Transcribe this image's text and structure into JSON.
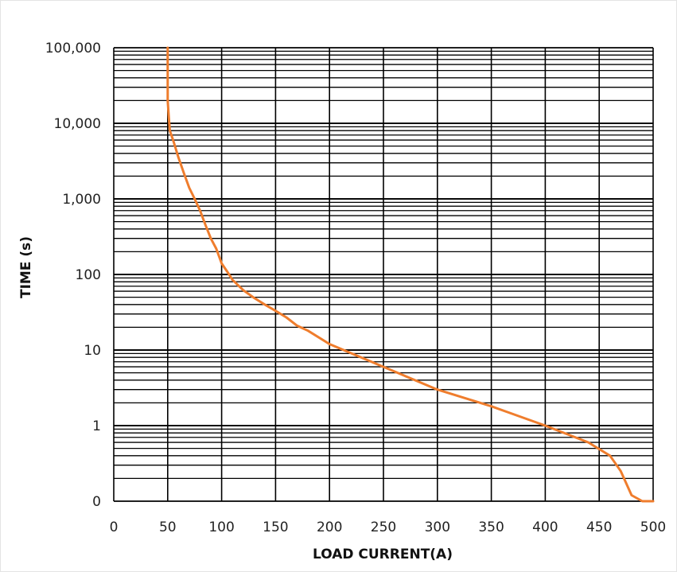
{
  "chart_data": {
    "type": "line",
    "xlabel": "LOAD CURRENT(A)",
    "ylabel": "TIME (s)",
    "y_scale": "log",
    "xlim": [
      0,
      500
    ],
    "x_ticks": [
      0,
      50,
      100,
      150,
      200,
      250,
      300,
      350,
      400,
      450,
      500
    ],
    "x_tick_labels": [
      "0",
      "50",
      "100",
      "150",
      "200",
      "250",
      "300",
      "350",
      "400",
      "450",
      "500"
    ],
    "y_ticks": [
      "0",
      "1",
      "10",
      "100",
      "1,000",
      "10,000",
      "100,000"
    ],
    "grid": true,
    "line_color": "#ef7d2d",
    "grid_color": "#000000",
    "series": [
      {
        "x": [
          50,
          50,
          51,
          52,
          55,
          60,
          65,
          70,
          75,
          80,
          85,
          90,
          95,
          100,
          105,
          110,
          120,
          130,
          140,
          150,
          160,
          170,
          180,
          200,
          250,
          300,
          350,
          400,
          440,
          460,
          470,
          480,
          490,
          500
        ],
        "y": [
          100000,
          20000,
          12000,
          8000,
          6000,
          3500,
          2200,
          1400,
          1000,
          700,
          450,
          300,
          220,
          140,
          110,
          85,
          62,
          49,
          40,
          33,
          27,
          21,
          18,
          12,
          6,
          3,
          1.8,
          1,
          0.6,
          0.4,
          0.25,
          0.12,
          0.05,
          0
        ]
      }
    ]
  }
}
